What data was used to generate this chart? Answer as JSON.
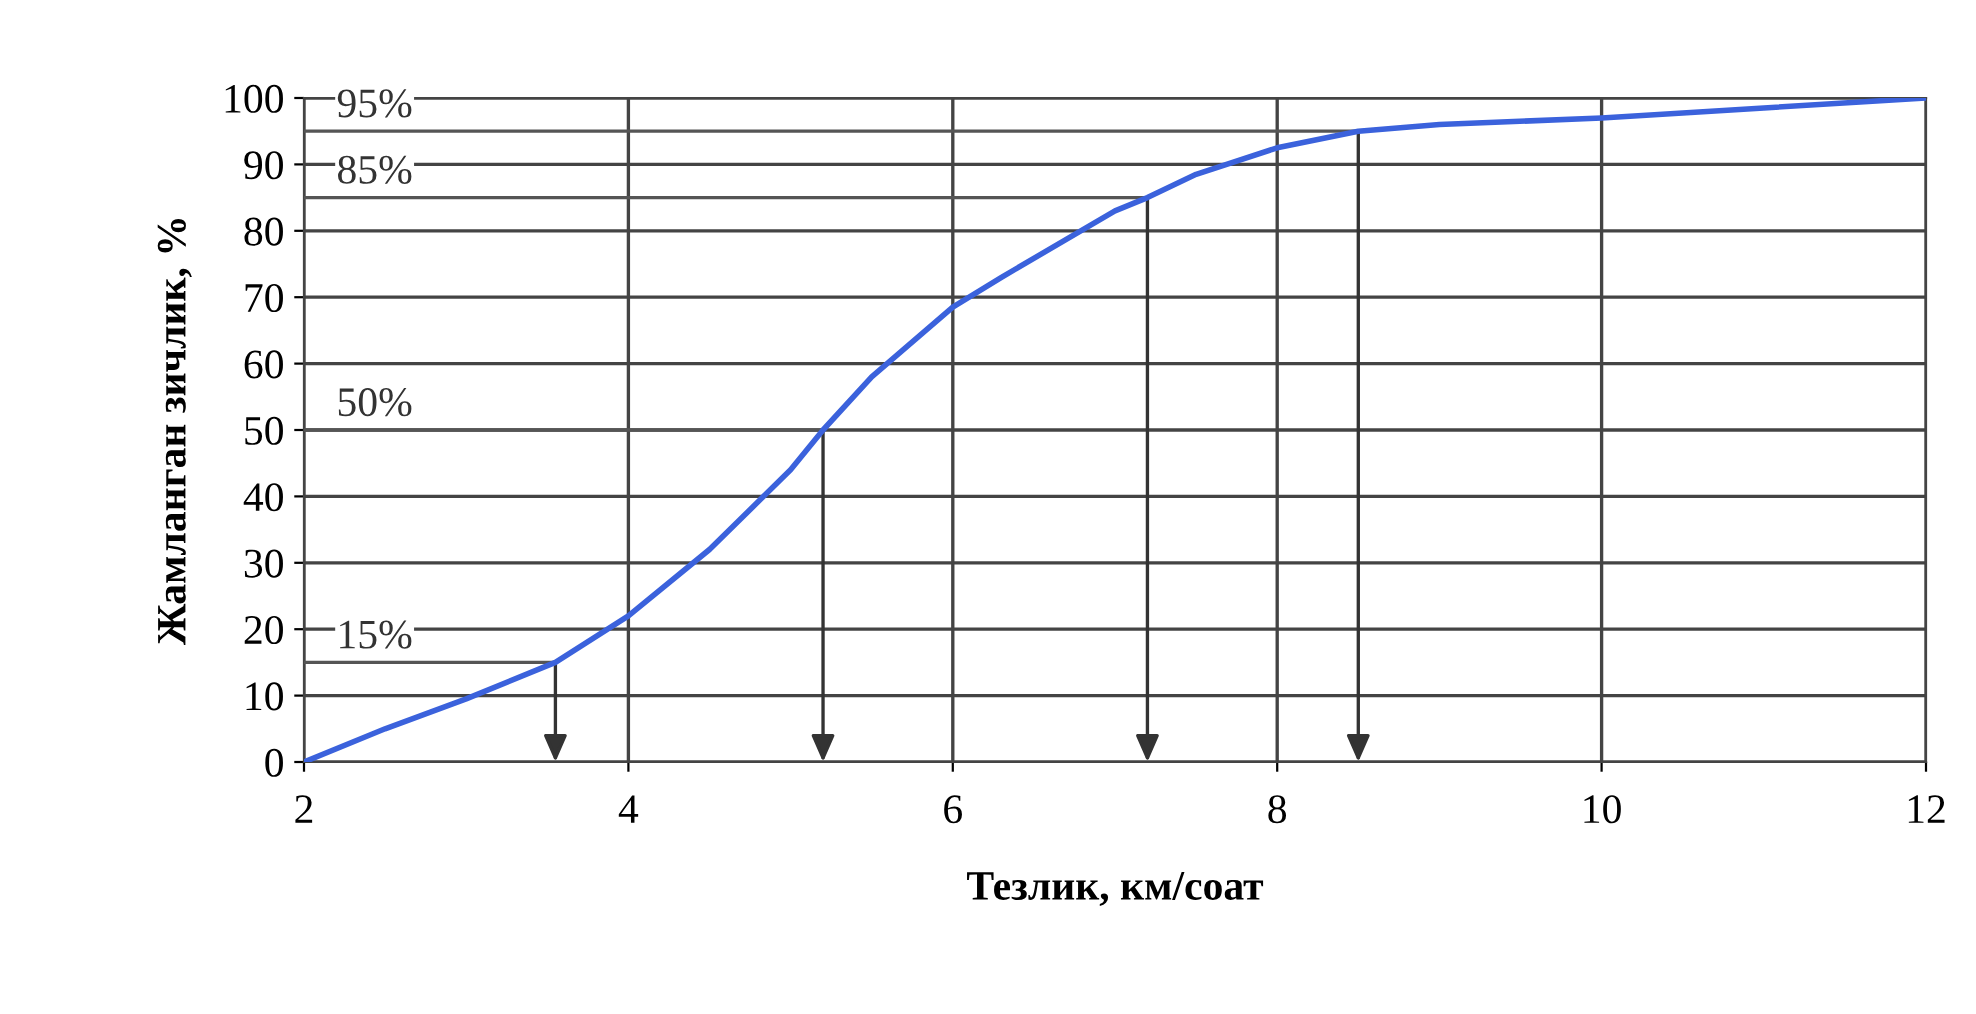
{
  "chart_data": {
    "type": "line",
    "xlabel": "Тезлик, км/соат",
    "ylabel": "Жамланган зичлик, %",
    "x": [
      2,
      2.5,
      3,
      3.55,
      4,
      4.5,
      5,
      5.2,
      5.5,
      6,
      6.3,
      7,
      7.2,
      7.5,
      8,
      8.5,
      9,
      10,
      11,
      12
    ],
    "series": [
      {
        "color": "#3b62dc",
        "values": [
          0,
          5,
          9.5,
          15,
          22,
          32,
          44,
          50,
          58,
          68.5,
          73,
          83,
          85,
          88.5,
          92.5,
          95,
          96,
          97,
          98.5,
          100
        ]
      }
    ],
    "xlim": [
      2,
      12
    ],
    "xticks": [
      2,
      4,
      6,
      8,
      10,
      12
    ],
    "ylim": [
      0,
      100
    ],
    "yticks": [
      0,
      10,
      20,
      30,
      40,
      50,
      60,
      70,
      80,
      90,
      100
    ],
    "grid": true,
    "marker": "none",
    "line_style": "solid",
    "ref_lines": [
      {
        "axis": "y",
        "value": 15,
        "label": "15%",
        "color": "#555555"
      },
      {
        "axis": "y",
        "value": 50,
        "label": "50%",
        "color": "#555555"
      },
      {
        "axis": "y",
        "value": 85,
        "label": "85%",
        "color": "#555555"
      },
      {
        "axis": "y",
        "value": 95,
        "label": "95%",
        "color": "#555555"
      },
      {
        "axis": "x",
        "value": 3.55,
        "color": "#333333"
      },
      {
        "axis": "x",
        "value": 5.2,
        "color": "#333333"
      },
      {
        "axis": "x",
        "value": 7.2,
        "color": "#333333"
      },
      {
        "axis": "x",
        "value": 8.5,
        "color": "#333333"
      }
    ]
  }
}
